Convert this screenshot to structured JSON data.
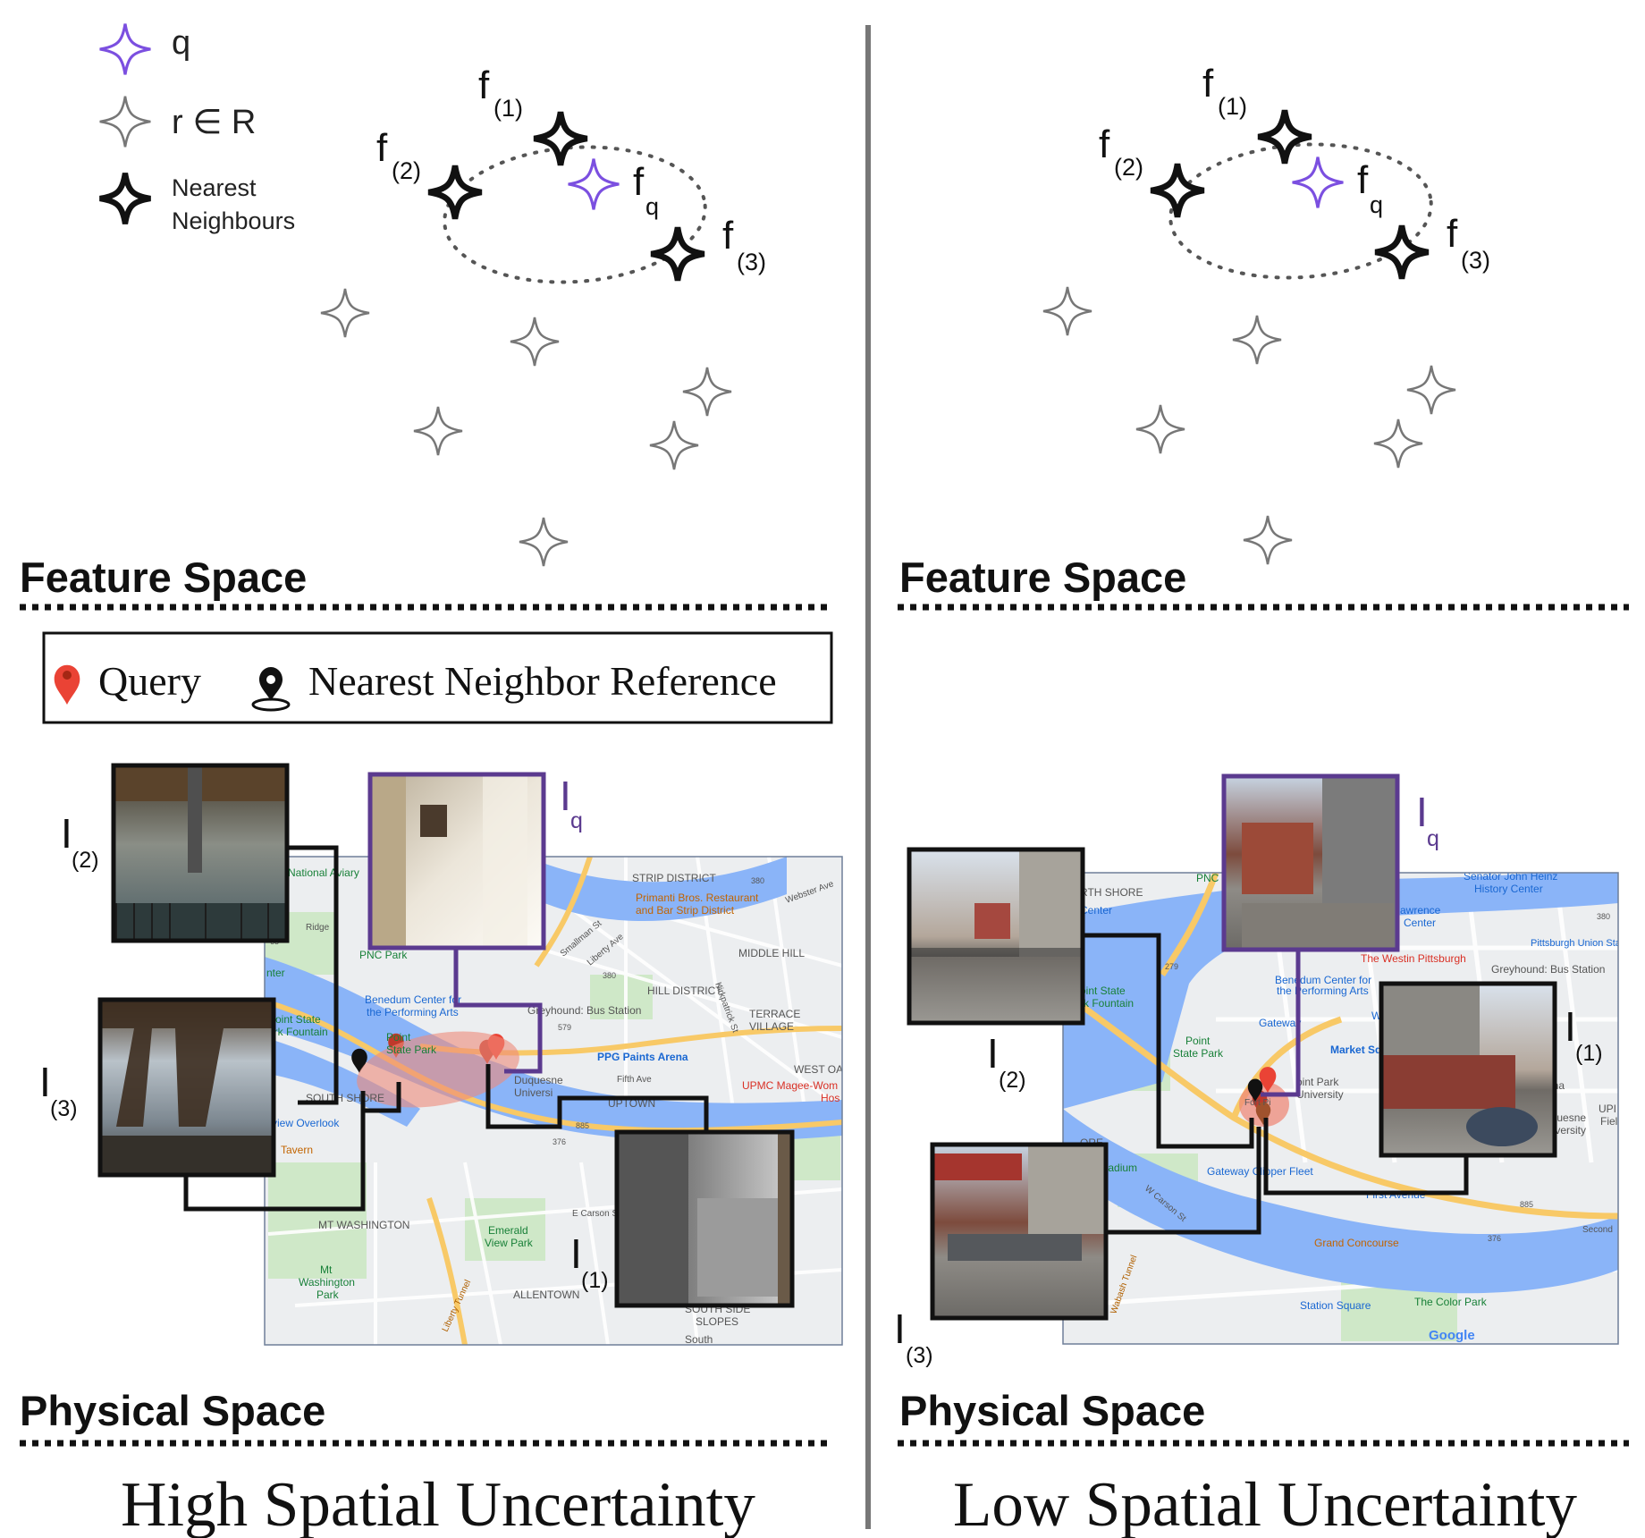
{
  "legend_feature": {
    "query_label": "q",
    "reference_label": "r ∈ R",
    "nn_label_line1": "Nearest",
    "nn_label_line2": "Neighbours"
  },
  "feature_labels": {
    "f1_base": "f",
    "f1_sub": "(1)",
    "f2_base": "f",
    "f2_sub": "(2)",
    "f3_base": "f",
    "f3_sub": "(3)",
    "fq_base": "f",
    "fq_sub": "q"
  },
  "image_labels": {
    "i_base": "I",
    "i1_sub": "(1)",
    "i2_sub": "(2)",
    "i3_sub": "(3)",
    "iq_sub": "q"
  },
  "sections": {
    "feature_space": "Feature Space",
    "physical_space": "Physical Space"
  },
  "map_legend": {
    "query": "Query",
    "nn_reference": "Nearest Neighbor Reference"
  },
  "panels": {
    "left_caption": "High Spatial Uncertainty",
    "right_caption": "Low Spatial Uncertainty"
  },
  "map_left_labels": {
    "strip_district": "STRIP DISTRICT",
    "primanti_1": "Primanti Bros. Restaurant",
    "primanti_2": "and Bar Strip District",
    "middle_hill": "MIDDLE HILL",
    "hill_district": "HILL DISTRICT",
    "terrace_village_1": "TERRACE",
    "terrace_village_2": "VILLAGE",
    "west_oak": "WEST OA",
    "upmc_1": "UPMC Magee-Wom",
    "upmc_2": "Hos",
    "ppg": "PPG Paints Arena",
    "greyhound": "Greyhound: Bus Station",
    "duquesne_1": "Duquesne",
    "duquesne_2": "Universi",
    "uptown": "UPTOWN",
    "pnc": "PNC Park",
    "national_aviary": "National Aviary",
    "benedum_1": "Benedum Center for",
    "benedum_2": "the Performing Arts",
    "point_1": "Point",
    "point_2": "State Park",
    "south_shore": "SOUTH SHORE",
    "view_overlook": "view Overlook",
    "tavern": "Tavern",
    "mt_washington": "MT WASHINGTON",
    "emerald_1": "Emerald",
    "emerald_2": "View Park",
    "mt_wash_park_1": "Mt",
    "mt_wash_park_2": "Washington",
    "mt_wash_park_3": "Park",
    "allentown": "ALLENTOWN",
    "southside_1": "SOUTH SIDE",
    "southside_2": "SLOPES",
    "south": "South",
    "liberty_tunnel": "Liberty Tunnel",
    "fifth_ave": "Fifth Ave",
    "e_carson": "E Carson St",
    "webster": "Webster Ave",
    "smallman": "Smallman St",
    "liberty_ave": "Liberty Ave",
    "ridge": "Ridge",
    "kirkpatrick": "Kirkpatrick St",
    "point_state_side": "Point State",
    "park_fountain": "ark Fountain",
    "center": "nter",
    "r380": "380",
    "r579": "579",
    "r885": "885",
    "r376": "376",
    "r65": "65"
  },
  "map_right_labels": {
    "north_shore": "RTH SHORE",
    "center": "Center",
    "pnc": "PNC",
    "heinz_1": "Senator John Heinz",
    "heinz_2": "History Center",
    "lawrence_1": "awrence",
    "lawrence_2": "Center",
    "union_station": "Pittsburgh Union Sta",
    "westin": "The Westin Pittsburgh",
    "greyhound": "Greyhound: Bus Station",
    "benedum_1": "Benedum Center for",
    "benedum_2": "the Performing Arts",
    "wood_st": "Wood St",
    "gateway": "Gateway",
    "market_sq": "Market Squ",
    "point_state_1": "oint State",
    "point_state_2": "rk Fountain",
    "point_1": "Point",
    "point_2": "State Park",
    "point_park_1": "oint Park",
    "point_park_2": "University",
    "duquesne_1": "uquesne",
    "duquesne_2": "niversity",
    "arena": "ena",
    "fort_pitt": "Fort Pi",
    "heinz_field": "ark Stadium",
    "gateway_clipper": "Gateway Clipper Fleet",
    "w_carson": "W Carson St",
    "first_avenue": "First Avenue",
    "grand_concourse": "Grand Concourse",
    "station_square": "Station Square",
    "color_park": "The Color Park",
    "google": "Google",
    "wabash": "Wabash Tunnel",
    "second": "Second",
    "ore": "ORE",
    "r279": "279",
    "r376": "376",
    "r380": "380",
    "r885": "885",
    "upi_1": "UPI",
    "upi_2": "Fiel"
  },
  "colors": {
    "query_purple": "#7b4fe0",
    "frame_purple": "#5b3a8f",
    "reference_gray": "#444444",
    "query_pin_red": "#ea4335",
    "uncertainty_fill": "#ef8a7a",
    "river": "#8ab4f8",
    "map_bg": "#e9ecef",
    "park_green": "#c8e6c4",
    "highway": "#f8c967"
  },
  "icons": {
    "query_star": "four-point-star-purple",
    "reference_star": "four-point-star-outline",
    "nn_star": "four-point-star-black",
    "query_pin": "map-pin-red",
    "nn_pin": "map-pin-black"
  }
}
